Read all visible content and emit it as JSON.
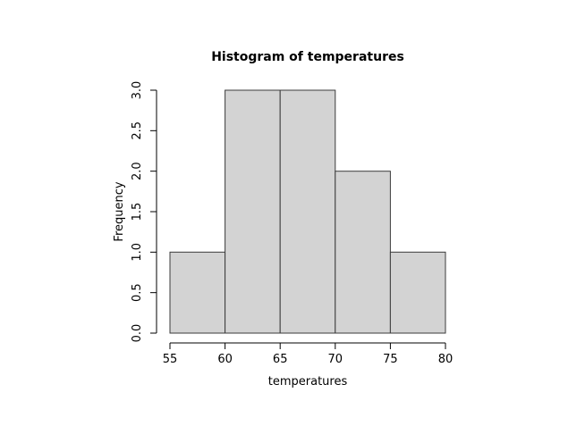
{
  "chart_data": {
    "type": "bar",
    "chart_kind": "histogram",
    "title": "Histogram of temperatures",
    "xlabel": "temperatures",
    "ylabel": "Frequency",
    "bin_edges": [
      55,
      60,
      65,
      70,
      75,
      80
    ],
    "counts": [
      1,
      3,
      3,
      2,
      1
    ],
    "x_tick_labels": [
      "55",
      "60",
      "65",
      "70",
      "75",
      "80"
    ],
    "x_tick_values": [
      55,
      60,
      65,
      70,
      75,
      80
    ],
    "y_tick_labels": [
      "0.0",
      "0.5",
      "1.0",
      "1.5",
      "2.0",
      "2.5",
      "3.0"
    ],
    "y_tick_values": [
      0,
      0.5,
      1,
      1.5,
      2,
      2.5,
      3
    ],
    "xlim": [
      55,
      80
    ],
    "ylim": [
      0,
      3
    ],
    "grid": false,
    "legend": "none",
    "colors": {
      "background": "#ffffff",
      "bar_fill": "#d3d3d3",
      "bar_border": "#3b3b3b",
      "axis": "#000000",
      "text": "#000000"
    }
  }
}
